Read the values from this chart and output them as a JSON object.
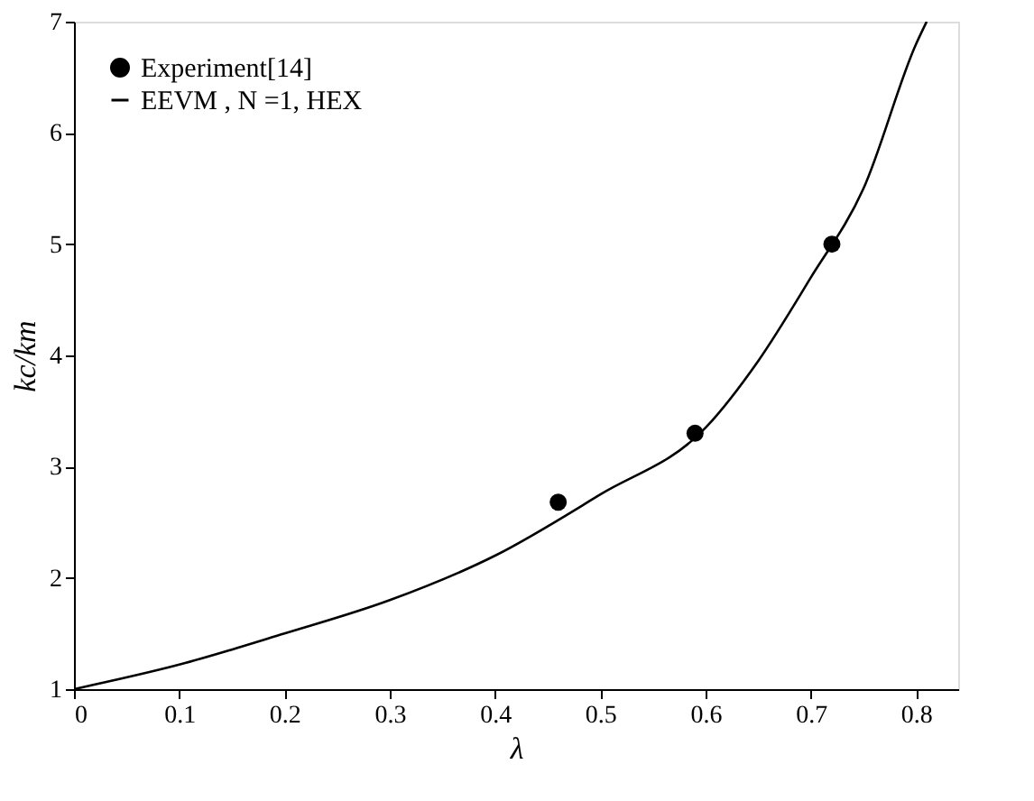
{
  "chart_data": {
    "type": "scatter",
    "xlabel": "λ",
    "ylabel": "kc/km",
    "xlim": [
      0,
      0.84
    ],
    "xticks": [
      0,
      0.1,
      0.2,
      0.3,
      0.4,
      0.5,
      0.6,
      0.7,
      0.8
    ],
    "ylim": [
      1,
      7
    ],
    "yticks": [
      1,
      2,
      3,
      4,
      5,
      6,
      7
    ],
    "grid": false,
    "legend": "top left",
    "series": [
      {
        "name": "Experiment[14]",
        "color": "#000000",
        "marker": "circle",
        "x": [
          0.46,
          0.59,
          0.72
        ],
        "values": [
          2.68,
          3.3,
          5.0
        ]
      },
      {
        "name": "EEVM , N =1, HEX",
        "type": "line",
        "color": "#000000",
        "marker": "none",
        "line_style": "solid",
        "x": [
          0,
          0.1,
          0.2,
          0.3,
          0.4,
          0.5,
          0.6,
          0.65,
          0.7,
          0.75,
          0.8,
          0.81
        ],
        "values": [
          1,
          1.22,
          1.5,
          1.8,
          2.2,
          2.75,
          3.35,
          3.95,
          4.7,
          5.5,
          6.8,
          7.0
        ]
      }
    ]
  }
}
